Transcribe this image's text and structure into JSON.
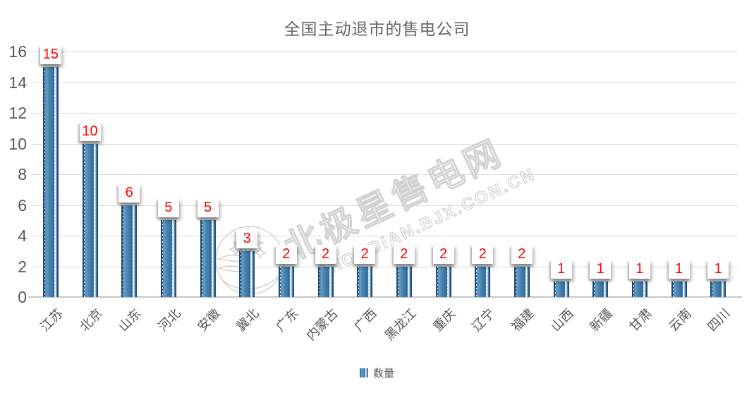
{
  "title": "全国主动退市的售电公司",
  "chart_data": {
    "type": "bar",
    "title": "全国主动退市的售电公司",
    "categories": [
      "江苏",
      "北京",
      "山东",
      "河北",
      "安徽",
      "冀北",
      "广东",
      "内蒙古",
      "广西",
      "黑龙江",
      "重庆",
      "辽宁",
      "福建",
      "山西",
      "新疆",
      "甘肃",
      "云南",
      "四川"
    ],
    "values": [
      15,
      10,
      6,
      5,
      5,
      3,
      2,
      2,
      2,
      2,
      2,
      2,
      2,
      1,
      1,
      1,
      1,
      1
    ],
    "series_name": "数量",
    "xlabel": "",
    "ylabel": "",
    "ylim": [
      0,
      16
    ],
    "yticks": [
      0,
      2,
      4,
      6,
      8,
      10,
      12,
      14,
      16
    ],
    "grid": true,
    "legend_position": "bottom",
    "data_labels_shown": true
  },
  "legend": {
    "label": "数量"
  },
  "watermark": {
    "logo": "bjx-circle-star-leaf-logo",
    "line1": "北极星售电网",
    "line2": "SHOUDIAN.BJX.CON.CN"
  },
  "colors": {
    "bar_dark": "#1d4e77",
    "bar_mid": "#4a86b5",
    "bar_highlight": "#f2f8fc",
    "data_label_text": "#ff0000",
    "data_label_bg": "#ffffff",
    "axis_text": "#595959",
    "title_text": "#666666",
    "gridline": "#d9d9d9",
    "baseline": "#c6c6c6",
    "watermark": "#d2d2d2"
  }
}
